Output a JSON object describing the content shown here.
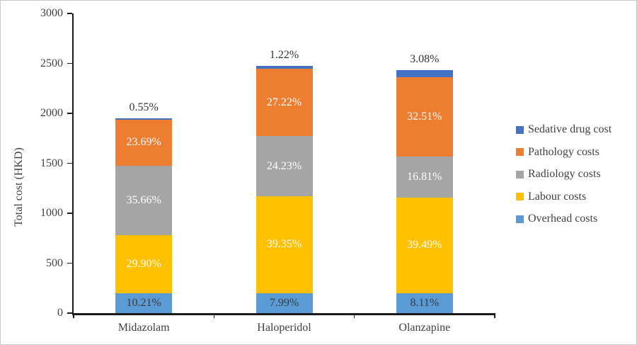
{
  "chart_data": {
    "type": "bar",
    "stacked": true,
    "title": "",
    "ylabel": "Total cost (HKD)",
    "xlabel": "",
    "ylim": [
      0,
      3000
    ],
    "grid": false,
    "y_ticks": [
      0,
      500,
      1000,
      1500,
      2000,
      2500,
      3000
    ],
    "y_tick_labels": [
      "0",
      "500",
      "1000",
      "1500",
      "2000",
      "2500",
      "3000"
    ],
    "categories": [
      "Midazolam",
      "Haloperidol",
      "Olanzapine"
    ],
    "totals_hkd_approx": [
      1950,
      2475,
      2435
    ],
    "series": [
      {
        "name": "Overhead costs",
        "color": "#5B9BD5",
        "values_pct": [
          10.21,
          7.99,
          8.11
        ],
        "labels": [
          "10.21%",
          "7.99%",
          "8.11%"
        ],
        "label_color": "#3b3b3b",
        "label_placement": "inside"
      },
      {
        "name": "Labour costs",
        "color": "#FFC000",
        "values_pct": [
          29.9,
          39.35,
          39.49
        ],
        "labels": [
          "29.90%",
          "39.35%",
          "39.49%"
        ],
        "label_color": "#FFFFFF",
        "label_placement": "inside"
      },
      {
        "name": "Radiology costs",
        "color": "#A5A5A5",
        "values_pct": [
          35.66,
          24.23,
          16.81
        ],
        "labels": [
          "35.66%",
          "24.23%",
          "16.81%"
        ],
        "label_color": "#FFFFFF",
        "label_placement": "inside"
      },
      {
        "name": "Pathology costs",
        "color": "#ED7D31",
        "values_pct": [
          23.69,
          27.22,
          32.51
        ],
        "labels": [
          "23.69%",
          "27.22%",
          "32.51%"
        ],
        "label_color": "#FFFFFF",
        "label_placement": "inside"
      },
      {
        "name": "Sedative drug cost",
        "color": "#4472C4",
        "values_pct": [
          0.55,
          1.22,
          3.08
        ],
        "labels": [
          "0.55%",
          "1.22%",
          "3.08%"
        ],
        "label_color": "#333333",
        "label_placement": "outside"
      }
    ],
    "legend": {
      "position": "right",
      "items": [
        {
          "label": "Sedative drug cost",
          "color": "#4472C4"
        },
        {
          "label": "Pathology costs",
          "color": "#ED7D31"
        },
        {
          "label": "Radiology costs",
          "color": "#A5A5A5"
        },
        {
          "label": "Labour costs",
          "color": "#FFC000"
        },
        {
          "label": "Overhead costs",
          "color": "#5B9BD5"
        }
      ]
    }
  }
}
